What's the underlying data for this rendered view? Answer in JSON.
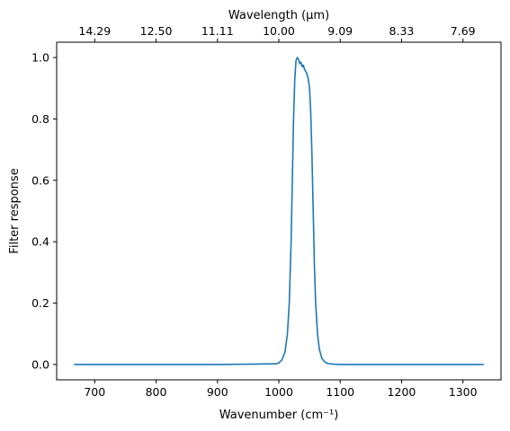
{
  "chart_data": {
    "type": "line",
    "xlabel": "Wavenumber (cm⁻¹)",
    "ylabel": "Filter response",
    "top_xlabel": "Wavelength (μm)",
    "xlim": [
      638,
      1362
    ],
    "ylim": [
      -0.05,
      1.05
    ],
    "x_ticks": [
      700,
      800,
      900,
      1000,
      1100,
      1200,
      1300
    ],
    "y_ticks": [
      0.0,
      0.2,
      0.4,
      0.6,
      0.8,
      1.0
    ],
    "x_tick_labels": [
      "700",
      "800",
      "900",
      "1000",
      "1100",
      "1200",
      "1300"
    ],
    "y_tick_labels": [
      "0.0",
      "0.2",
      "0.4",
      "0.6",
      "0.8",
      "1.0"
    ],
    "top_ticks": [
      {
        "wavenumber": 700,
        "label": "14.29"
      },
      {
        "wavenumber": 800,
        "label": "12.50"
      },
      {
        "wavenumber": 900,
        "label": "11.11"
      },
      {
        "wavenumber": 1000,
        "label": "10.00"
      },
      {
        "wavenumber": 1100,
        "label": "9.09"
      },
      {
        "wavenumber": 1200,
        "label": "8.33"
      },
      {
        "wavenumber": 1300,
        "label": "7.69"
      }
    ],
    "grid": false,
    "legend": "none",
    "series": [
      {
        "color": "#1f77b4",
        "x": [
          667,
          900,
          995,
          1000,
          1005,
          1010,
          1014,
          1017,
          1020,
          1022,
          1024,
          1026,
          1028,
          1030,
          1032,
          1034,
          1036,
          1038,
          1040,
          1042,
          1044,
          1046,
          1048,
          1050,
          1052,
          1054,
          1056,
          1058,
          1060,
          1063,
          1066,
          1070,
          1075,
          1080,
          1090,
          1100,
          1200,
          1333
        ],
        "y": [
          0.0,
          0.0,
          0.002,
          0.005,
          0.015,
          0.04,
          0.1,
          0.2,
          0.4,
          0.6,
          0.8,
          0.93,
          0.99,
          1.0,
          0.995,
          0.98,
          0.985,
          0.97,
          0.975,
          0.96,
          0.955,
          0.945,
          0.93,
          0.9,
          0.82,
          0.68,
          0.5,
          0.32,
          0.2,
          0.1,
          0.05,
          0.02,
          0.008,
          0.003,
          0.001,
          0.0,
          0.0,
          0.0
        ]
      }
    ]
  }
}
